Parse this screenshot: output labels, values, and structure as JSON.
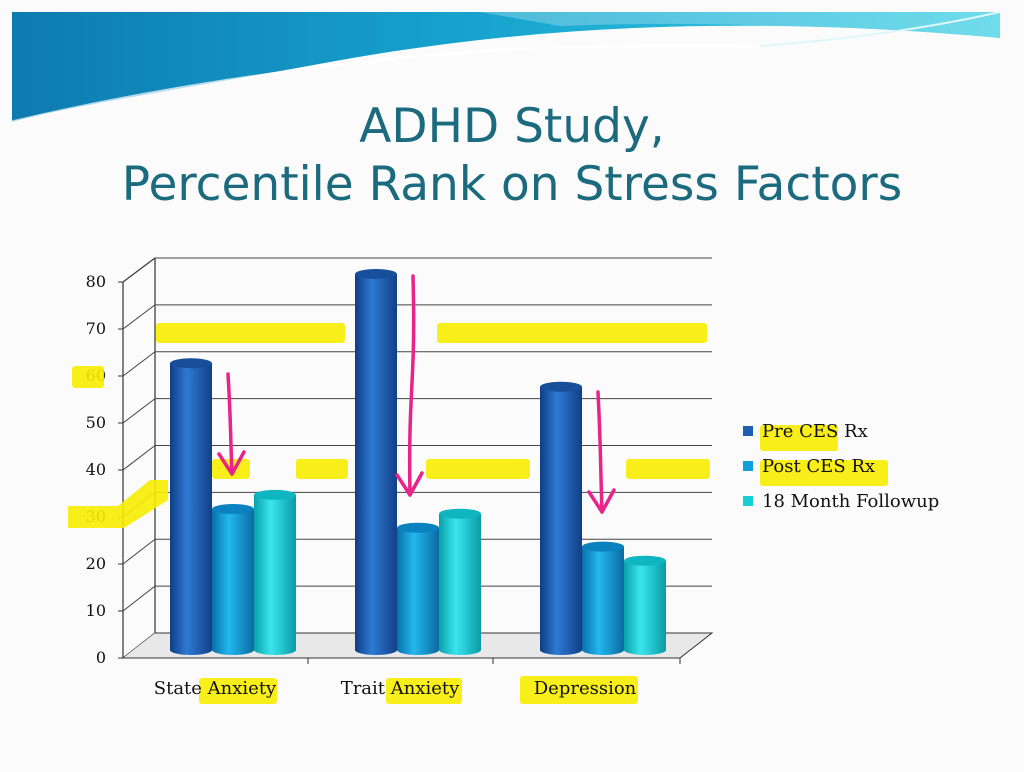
{
  "slide": {
    "title_line1": "ADHD Study,",
    "title_line2": "Percentile Rank on Stress Factors"
  },
  "colors": {
    "title": "#1b6a7e",
    "highlight": "#f7ec00",
    "arrow": "#e8238a",
    "pre": "#1e5fb4",
    "post": "#0f9fdc",
    "followup": "#18cfd8"
  },
  "chart_data": {
    "type": "bar",
    "style": "3d-cylinder",
    "categories": [
      "State Anxiety",
      "Trait Anxiety",
      "Depression"
    ],
    "series": [
      {
        "name": "Pre CES Rx",
        "values": [
          61,
          80,
          56
        ]
      },
      {
        "name": "Post CES Rx",
        "values": [
          30,
          26,
          22
        ]
      },
      {
        "name": "18 Month Followup",
        "values": [
          33,
          29,
          19
        ]
      }
    ],
    "y_ticks": [
      "0",
      "10",
      "20",
      "30",
      "40",
      "50",
      "60",
      "70",
      "80"
    ],
    "ylim": [
      0,
      80
    ],
    "grid": true,
    "legend": "right",
    "highlight_levels": [
      64,
      35
    ]
  }
}
